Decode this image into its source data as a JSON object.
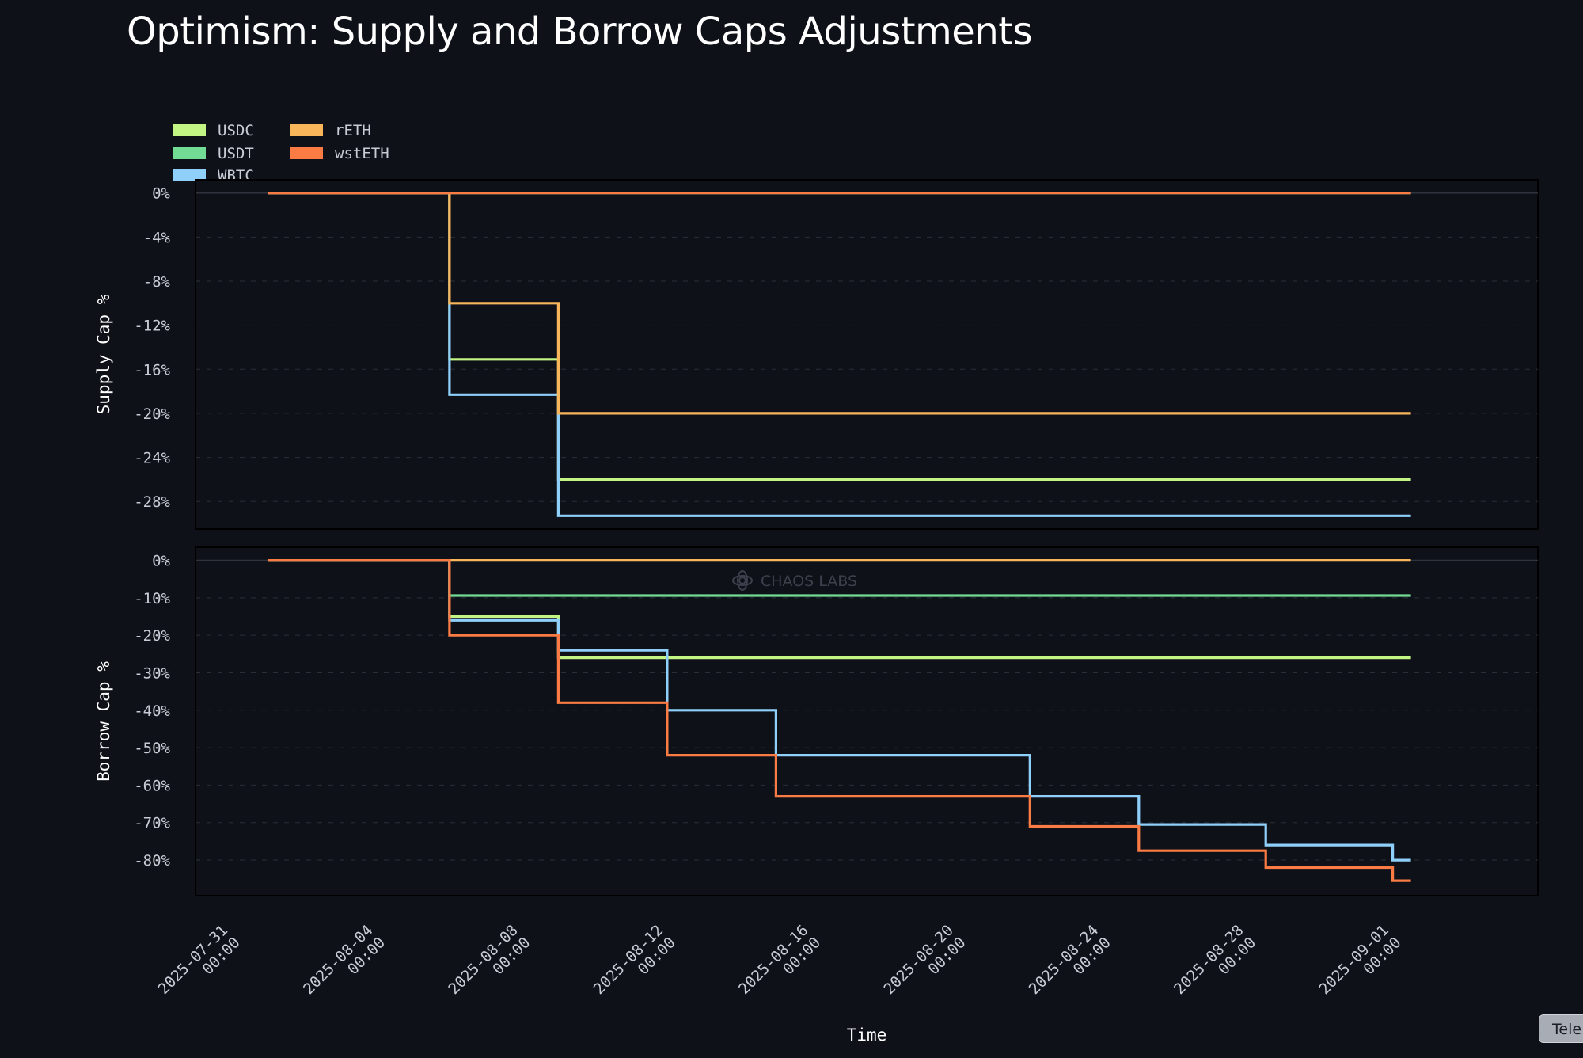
{
  "title": "Optimism: Supply and Borrow Caps Adjustments",
  "watermark": "CHAOS LABS",
  "tele_label": "Tele",
  "chart_data": [
    {
      "type": "line",
      "step": true,
      "id": "supply",
      "ylabel": "Supply Cap %",
      "ylim": [
        -30.5,
        1.2
      ],
      "yticks": [
        0,
        -4,
        -8,
        -12,
        -16,
        -20,
        -24,
        -28
      ],
      "ytick_labels": [
        "0%",
        "-4%",
        "-8%",
        "-12%",
        "-16%",
        "-20%",
        "-24%",
        "-28%"
      ],
      "grid": true,
      "legend": "top-left",
      "series": [
        {
          "name": "USDC",
          "color": "#c3f584",
          "points": [
            [
              "2025-08-01T00:00",
              0
            ],
            [
              "2025-08-06T00:00",
              -15.1
            ],
            [
              "2025-08-09T00:00",
              -26.0
            ],
            [
              "2025-09-01T12:00",
              -26.0
            ]
          ]
        },
        {
          "name": "USDT",
          "color": "#72dc95",
          "points": [
            [
              "2025-08-01T00:00",
              0
            ],
            [
              "2025-09-01T12:00",
              0
            ]
          ]
        },
        {
          "name": "WBTC",
          "color": "#8fd0fb",
          "points": [
            [
              "2025-08-01T00:00",
              0
            ],
            [
              "2025-08-06T00:00",
              -18.3
            ],
            [
              "2025-08-09T00:00",
              -29.3
            ],
            [
              "2025-09-01T12:00",
              -29.3
            ]
          ]
        },
        {
          "name": "rETH",
          "color": "#f8b55a",
          "points": [
            [
              "2025-08-01T00:00",
              0
            ],
            [
              "2025-08-06T00:00",
              -10.0
            ],
            [
              "2025-08-09T00:00",
              -20.0
            ],
            [
              "2025-09-01T12:00",
              -20.0
            ]
          ]
        },
        {
          "name": "wstETH",
          "color": "#fa7c44",
          "points": [
            [
              "2025-08-01T00:00",
              0
            ],
            [
              "2025-09-01T12:00",
              0
            ]
          ]
        }
      ]
    },
    {
      "type": "line",
      "step": true,
      "id": "borrow",
      "ylabel": "Borrow Cap %",
      "xlabel": "Time",
      "ylim": [
        -89.5,
        3.5
      ],
      "yticks": [
        0,
        -10,
        -20,
        -30,
        -40,
        -50,
        -60,
        -70,
        -80
      ],
      "ytick_labels": [
        "0%",
        "-10%",
        "-20%",
        "-30%",
        "-40%",
        "-50%",
        "-60%",
        "-70%",
        "-80%"
      ],
      "grid": true,
      "series": [
        {
          "name": "USDC",
          "color": "#c3f584",
          "points": [
            [
              "2025-08-01T00:00",
              0
            ],
            [
              "2025-08-06T00:00",
              -15.0
            ],
            [
              "2025-08-09T00:00",
              -26.0
            ],
            [
              "2025-09-01T12:00",
              -26.0
            ]
          ]
        },
        {
          "name": "USDT",
          "color": "#72dc95",
          "points": [
            [
              "2025-08-01T00:00",
              0
            ],
            [
              "2025-08-06T00:00",
              -9.4
            ],
            [
              "2025-09-01T12:00",
              -9.4
            ]
          ]
        },
        {
          "name": "WBTC",
          "color": "#8fd0fb",
          "points": [
            [
              "2025-08-01T00:00",
              0
            ],
            [
              "2025-08-06T00:00",
              -16.0
            ],
            [
              "2025-08-09T00:00",
              -24.0
            ],
            [
              "2025-08-12T00:00",
              -40.0
            ],
            [
              "2025-08-15T00:00",
              -52.0
            ],
            [
              "2025-08-22T00:00",
              -63.0
            ],
            [
              "2025-08-25T00:00",
              -70.5
            ],
            [
              "2025-08-28T12:00",
              -76.0
            ],
            [
              "2025-09-01T00:00",
              -80.0
            ],
            [
              "2025-09-01T12:00",
              -80.0
            ]
          ]
        },
        {
          "name": "rETH",
          "color": "#f8b55a",
          "points": [
            [
              "2025-08-01T00:00",
              0
            ],
            [
              "2025-09-01T12:00",
              0
            ]
          ]
        },
        {
          "name": "wstETH",
          "color": "#fa7c44",
          "points": [
            [
              "2025-08-01T00:00",
              0
            ],
            [
              "2025-08-06T00:00",
              -20.0
            ],
            [
              "2025-08-09T00:00",
              -38.0
            ],
            [
              "2025-08-12T00:00",
              -52.0
            ],
            [
              "2025-08-15T00:00",
              -63.0
            ],
            [
              "2025-08-22T00:00",
              -71.0
            ],
            [
              "2025-08-25T00:00",
              -77.5
            ],
            [
              "2025-08-28T12:00",
              -82.0
            ],
            [
              "2025-09-01T00:00",
              -85.5
            ],
            [
              "2025-09-01T12:00",
              -85.5
            ]
          ]
        }
      ]
    }
  ],
  "x_axis": {
    "range": [
      "2025-07-30T00:00",
      "2025-09-05T00:00"
    ],
    "ticks": [
      {
        "date": "2025-07-31T00:00",
        "line1": "2025-07-31",
        "line2": "00:00"
      },
      {
        "date": "2025-08-04T00:00",
        "line1": "2025-08-04",
        "line2": "00:00"
      },
      {
        "date": "2025-08-08T00:00",
        "line1": "2025-08-08",
        "line2": "00:00"
      },
      {
        "date": "2025-08-12T00:00",
        "line1": "2025-08-12",
        "line2": "00:00"
      },
      {
        "date": "2025-08-16T00:00",
        "line1": "2025-08-16",
        "line2": "00:00"
      },
      {
        "date": "2025-08-20T00:00",
        "line1": "2025-08-20",
        "line2": "00:00"
      },
      {
        "date": "2025-08-24T00:00",
        "line1": "2025-08-24",
        "line2": "00:00"
      },
      {
        "date": "2025-08-28T00:00",
        "line1": "2025-08-28",
        "line2": "00:00"
      },
      {
        "date": "2025-09-01T00:00",
        "line1": "2025-09-01",
        "line2": "00:00"
      }
    ]
  }
}
